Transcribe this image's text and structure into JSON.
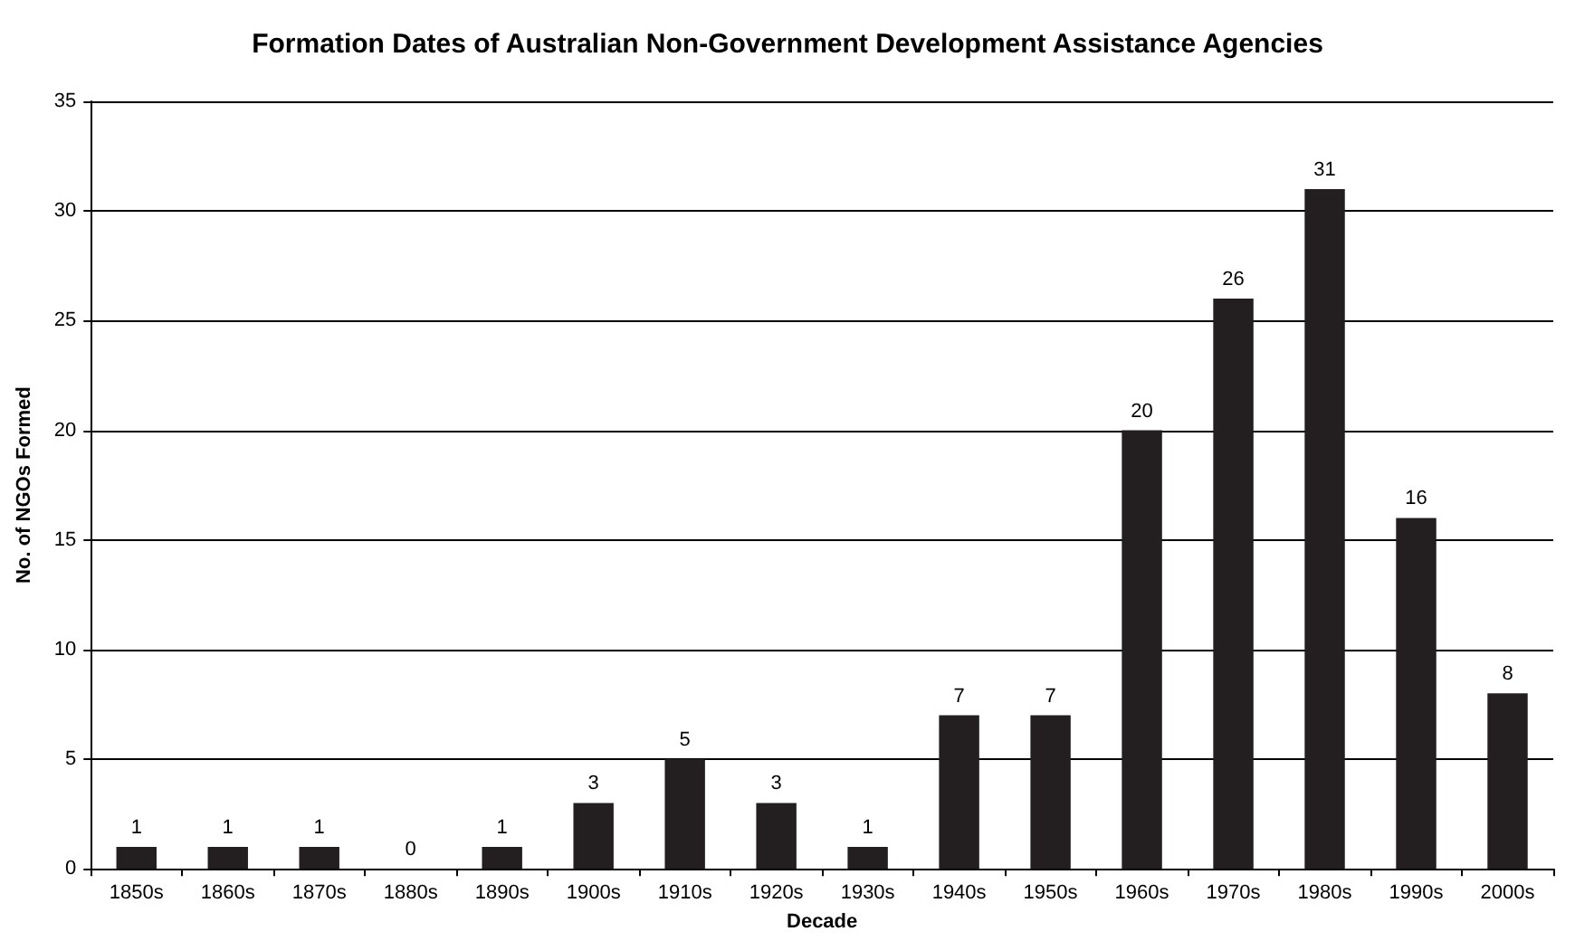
{
  "chart_data": {
    "type": "bar",
    "title": "Formation Dates of Australian Non-Government Development Assistance Agencies",
    "xlabel": "Decade",
    "ylabel": "No. of NGOs Formed",
    "categories": [
      "1850s",
      "1860s",
      "1870s",
      "1880s",
      "1890s",
      "1900s",
      "1910s",
      "1920s",
      "1930s",
      "1940s",
      "1950s",
      "1960s",
      "1970s",
      "1980s",
      "1990s",
      "2000s"
    ],
    "values": [
      1,
      1,
      1,
      0,
      1,
      3,
      5,
      3,
      1,
      7,
      7,
      20,
      26,
      31,
      16,
      8
    ],
    "color": "#231f20",
    "ylim": [
      0,
      35
    ],
    "yticks": [
      0,
      5,
      10,
      15,
      20,
      25,
      30,
      35
    ],
    "grid": "y",
    "data_labels": true
  }
}
